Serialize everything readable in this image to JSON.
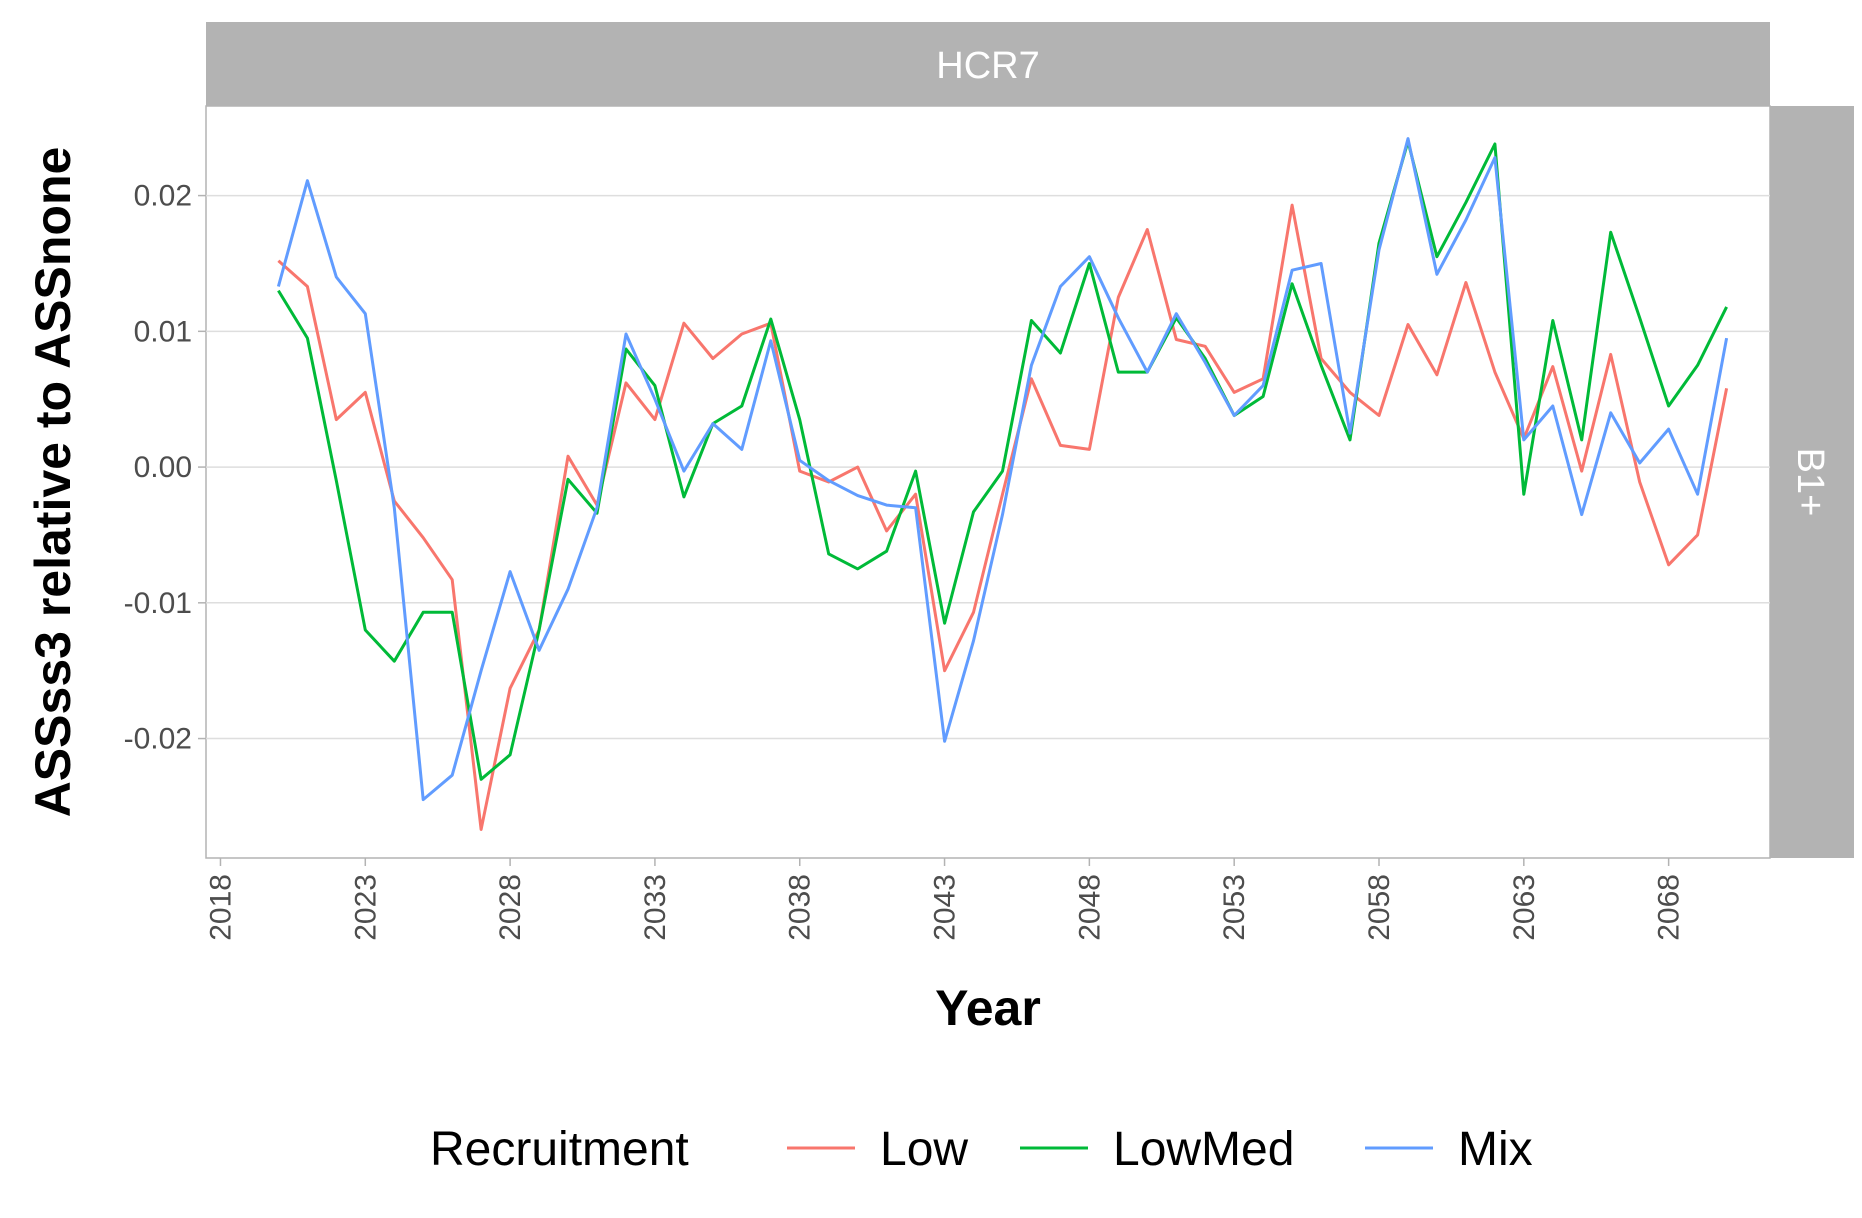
{
  "chart_data": {
    "type": "line",
    "facet_top": "HCR7",
    "facet_right": "B1+",
    "xlabel": "Year",
    "ylabel": "ASSss3 relative to ASSnone",
    "xlim": [
      2017.5,
      2071.5
    ],
    "ylim": [
      -0.0288,
      0.0266
    ],
    "x_ticks": [
      2018,
      2023,
      2028,
      2033,
      2038,
      2043,
      2048,
      2053,
      2058,
      2063,
      2068
    ],
    "y_ticks": [
      -0.02,
      -0.01,
      0.0,
      0.01,
      0.02
    ],
    "y_tick_labels": [
      "-0.02",
      "-0.01",
      "0.00",
      "0.01",
      "0.02"
    ],
    "grid": true,
    "legend_position": "bottom",
    "legend_title": "Recruitment",
    "x": [
      2020,
      2021,
      2022,
      2023,
      2024,
      2025,
      2026,
      2027,
      2028,
      2029,
      2030,
      2031,
      2032,
      2033,
      2034,
      2035,
      2036,
      2037,
      2038,
      2039,
      2040,
      2041,
      2042,
      2043,
      2044,
      2045,
      2046,
      2047,
      2048,
      2049,
      2050,
      2051,
      2052,
      2053,
      2054,
      2055,
      2056,
      2057,
      2058,
      2059,
      2060,
      2061,
      2062,
      2063,
      2064,
      2065,
      2066,
      2067,
      2068,
      2069,
      2070
    ],
    "series": [
      {
        "name": "Low",
        "color": "#F8766D",
        "values": [
          0.0152,
          0.0133,
          0.0035,
          0.0055,
          -0.0025,
          -0.0052,
          -0.0083,
          -0.0267,
          -0.0163,
          -0.012,
          0.0008,
          -0.0028,
          0.0062,
          0.0035,
          0.0106,
          0.008,
          0.0098,
          0.0106,
          -0.0003,
          -0.0011,
          0.0,
          -0.0047,
          -0.002,
          -0.015,
          -0.0107,
          -0.002,
          0.0065,
          0.0016,
          0.0013,
          0.0125,
          0.0175,
          0.0094,
          0.0089,
          0.0055,
          0.0065,
          0.0193,
          0.008,
          0.0055,
          0.0038,
          0.0105,
          0.0068,
          0.0136,
          0.007,
          0.0021,
          0.0074,
          -0.0003,
          0.0083,
          -0.0011,
          -0.0072,
          -0.005,
          0.0058
        ]
      },
      {
        "name": "LowMed",
        "color": "#00BA38",
        "values": [
          0.013,
          0.0095,
          -0.001,
          -0.012,
          -0.0143,
          -0.0107,
          -0.0107,
          -0.023,
          -0.0212,
          -0.012,
          -0.0009,
          -0.0034,
          0.0087,
          0.006,
          -0.0022,
          0.0032,
          0.0045,
          0.0109,
          0.0035,
          -0.0064,
          -0.0075,
          -0.0062,
          -0.0003,
          -0.0115,
          -0.0033,
          -0.0003,
          0.0108,
          0.0084,
          0.015,
          0.007,
          0.007,
          0.011,
          0.008,
          0.0038,
          0.0052,
          0.0135,
          0.0075,
          0.002,
          0.0165,
          0.024,
          0.0155,
          0.0195,
          0.0238,
          -0.002,
          0.0108,
          0.002,
          0.0173,
          0.011,
          0.0045,
          0.0075,
          0.0118
        ]
      },
      {
        "name": "Mix",
        "color": "#619CFF",
        "values": [
          0.0133,
          0.0211,
          0.014,
          0.0113,
          -0.003,
          -0.0245,
          -0.0227,
          -0.015,
          -0.0077,
          -0.0135,
          -0.009,
          -0.003,
          0.0098,
          0.005,
          -0.0003,
          0.0032,
          0.0013,
          0.0093,
          0.0005,
          -0.001,
          -0.0021,
          -0.0028,
          -0.003,
          -0.0202,
          -0.0128,
          -0.0035,
          0.0075,
          0.0133,
          0.0155,
          0.011,
          0.007,
          0.0113,
          0.0077,
          0.0038,
          0.006,
          0.0145,
          0.015,
          0.0025,
          0.016,
          0.0242,
          0.0142,
          0.0182,
          0.0228,
          0.002,
          0.0045,
          -0.0035,
          0.004,
          0.0003,
          0.0028,
          -0.002,
          0.0095
        ]
      }
    ]
  }
}
